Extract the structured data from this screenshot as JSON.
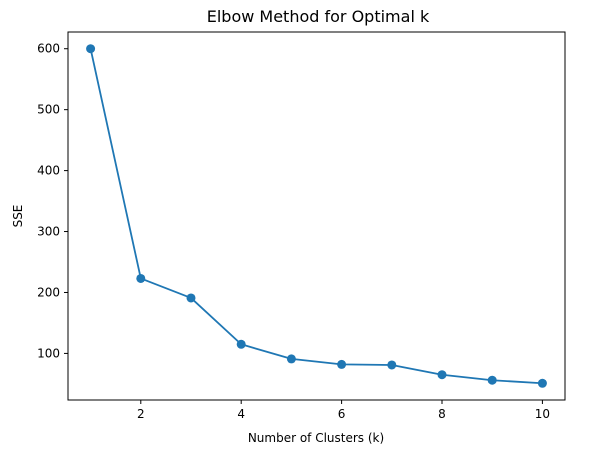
{
  "chart_data": {
    "type": "line",
    "title": "Elbow Method for Optimal k",
    "xlabel": "Number of Clusters (k)",
    "ylabel": "SSE",
    "x": [
      1,
      2,
      3,
      4,
      5,
      6,
      7,
      8,
      9,
      10
    ],
    "series": [
      {
        "values": [
          600,
          223,
          191,
          115,
          91,
          82,
          81,
          65,
          56,
          51
        ],
        "color": "#1f77b4",
        "marker": "circle"
      }
    ],
    "xticks": [
      2,
      4,
      6,
      8,
      10
    ],
    "yticks": [
      100,
      200,
      300,
      400,
      500,
      600
    ],
    "xlim": [
      0.55,
      10.45
    ],
    "ylim": [
      23.55,
      627.45
    ],
    "grid": false,
    "legend": "none"
  }
}
